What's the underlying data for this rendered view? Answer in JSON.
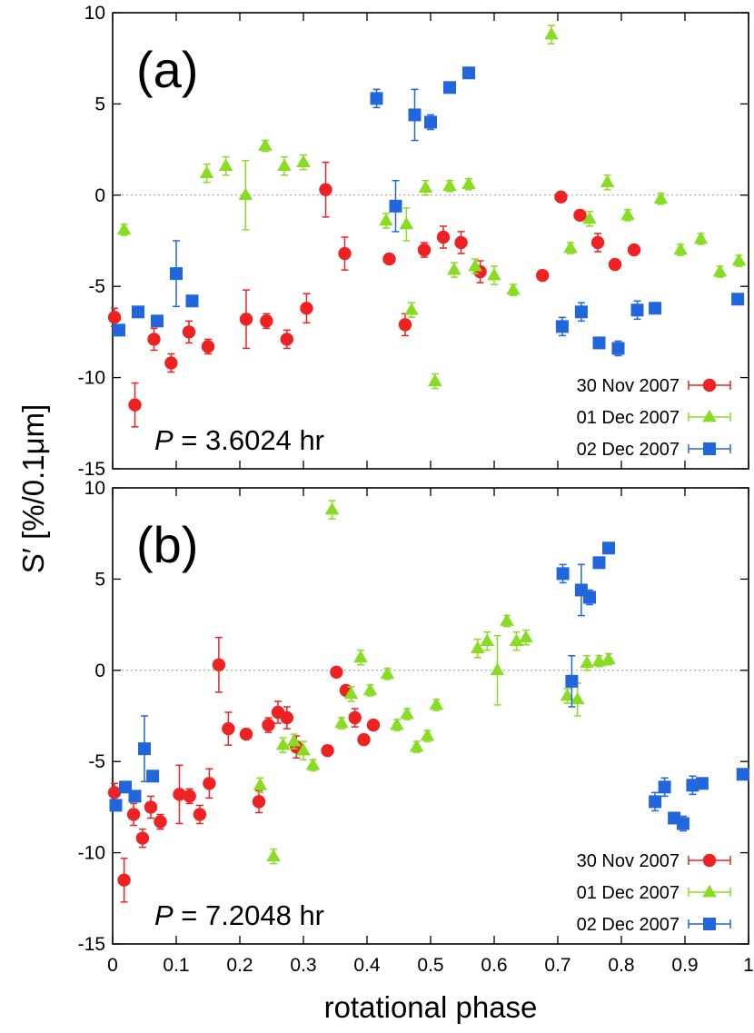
{
  "chart_data": {
    "type": "scatter",
    "ylabel": "S′ [%/0.1μm]",
    "xlabel": "rotational phase",
    "xlim": [
      0,
      1
    ],
    "ylim": [
      -15,
      10
    ],
    "x_ticks": [
      0,
      0.1,
      0.2,
      0.3,
      0.4,
      0.5,
      0.6,
      0.7,
      0.8,
      0.9,
      1
    ],
    "x_tick_labels": [
      "0",
      "0.1",
      "0.2",
      "0.3",
      "0.4",
      "0.5",
      "0.6",
      "0.7",
      "0.8",
      "0.9",
      "1"
    ],
    "y_ticks": [
      10,
      5,
      0,
      -5,
      -10,
      -15
    ],
    "y_tick_labels": [
      "10",
      "5",
      "0",
      "-5",
      "-10",
      "-15"
    ],
    "zero_line": true,
    "grid": false,
    "legend_placement": "bottom-right",
    "colors": {
      "30 Nov 2007": "#ee2222",
      "01 Dec 2007": "#88dd22",
      "02 Dec 2007": "#2266dd"
    },
    "panels": [
      {
        "label": "(a)",
        "period_var": "P",
        "period_text": " = 3.6024 hr",
        "series": [
          {
            "name": "30 Nov 2007",
            "marker": "circle",
            "points": [
              {
                "x": 0.003,
                "y": -6.7,
                "e": 0.5
              },
              {
                "x": 0.035,
                "y": -11.5,
                "e": 1.2
              },
              {
                "x": 0.065,
                "y": -7.9,
                "e": 0.6
              },
              {
                "x": 0.092,
                "y": -9.2,
                "e": 0.5
              },
              {
                "x": 0.12,
                "y": -7.5,
                "e": 0.6
              },
              {
                "x": 0.15,
                "y": -8.3,
                "e": 0.4
              },
              {
                "x": 0.21,
                "y": -6.8,
                "e": 1.6
              },
              {
                "x": 0.242,
                "y": -6.9,
                "e": 0.4
              },
              {
                "x": 0.274,
                "y": -7.9,
                "e": 0.5
              },
              {
                "x": 0.305,
                "y": -6.2,
                "e": 0.8
              },
              {
                "x": 0.335,
                "y": 0.3,
                "e": 1.5
              },
              {
                "x": 0.365,
                "y": -3.2,
                "e": 0.9
              },
              {
                "x": 0.435,
                "y": -3.5,
                "e": 0.2
              },
              {
                "x": 0.46,
                "y": -7.1,
                "e": 0.6
              },
              {
                "x": 0.49,
                "y": -3.0,
                "e": 0.4
              },
              {
                "x": 0.52,
                "y": -2.3,
                "e": 0.6
              },
              {
                "x": 0.548,
                "y": -2.6,
                "e": 0.6
              },
              {
                "x": 0.578,
                "y": -4.2,
                "e": 0.6
              },
              {
                "x": 0.676,
                "y": -4.4,
                "e": 0.2
              },
              {
                "x": 0.705,
                "y": -0.1,
                "e": 0.2
              },
              {
                "x": 0.735,
                "y": -1.1,
                "e": 0.2
              },
              {
                "x": 0.763,
                "y": -2.6,
                "e": 0.5
              },
              {
                "x": 0.79,
                "y": -3.8,
                "e": 0.2
              },
              {
                "x": 0.82,
                "y": -3.0,
                "e": 0.2
              }
            ]
          },
          {
            "name": "01 Dec 2007",
            "marker": "triangle",
            "points": [
              {
                "x": 0.018,
                "y": -1.9,
                "e": 0.3
              },
              {
                "x": 0.148,
                "y": 1.2,
                "e": 0.5
              },
              {
                "x": 0.178,
                "y": 1.6,
                "e": 0.5
              },
              {
                "x": 0.209,
                "y": 0.0,
                "e": 1.9
              },
              {
                "x": 0.24,
                "y": 2.7,
                "e": 0.3
              },
              {
                "x": 0.27,
                "y": 1.6,
                "e": 0.5
              },
              {
                "x": 0.3,
                "y": 1.8,
                "e": 0.4
              },
              {
                "x": 0.43,
                "y": -1.4,
                "e": 0.4
              },
              {
                "x": 0.462,
                "y": -1.6,
                "e": 0.9
              },
              {
                "x": 0.47,
                "y": -6.3,
                "e": 0.4
              },
              {
                "x": 0.492,
                "y": 0.4,
                "e": 0.4
              },
              {
                "x": 0.507,
                "y": -10.2,
                "e": 0.4
              },
              {
                "x": 0.53,
                "y": 0.5,
                "e": 0.3
              },
              {
                "x": 0.537,
                "y": -4.1,
                "e": 0.4
              },
              {
                "x": 0.56,
                "y": 0.6,
                "e": 0.3
              },
              {
                "x": 0.57,
                "y": -3.9,
                "e": 0.4
              },
              {
                "x": 0.6,
                "y": -4.4,
                "e": 0.5
              },
              {
                "x": 0.63,
                "y": -5.2,
                "e": 0.3
              },
              {
                "x": 0.69,
                "y": 8.8,
                "e": 0.5
              },
              {
                "x": 0.72,
                "y": -2.9,
                "e": 0.3
              },
              {
                "x": 0.75,
                "y": -1.3,
                "e": 0.4
              },
              {
                "x": 0.778,
                "y": 0.7,
                "e": 0.4
              },
              {
                "x": 0.81,
                "y": -1.1,
                "e": 0.3
              },
              {
                "x": 0.862,
                "y": -0.2,
                "e": 0.3
              },
              {
                "x": 0.893,
                "y": -3.0,
                "e": 0.3
              },
              {
                "x": 0.925,
                "y": -2.4,
                "e": 0.3
              },
              {
                "x": 0.955,
                "y": -4.2,
                "e": 0.3
              },
              {
                "x": 0.985,
                "y": -3.6,
                "e": 0.3
              }
            ]
          },
          {
            "name": "02 Dec 2007",
            "marker": "square",
            "points": [
              {
                "x": 0.01,
                "y": -7.4,
                "e": 0.2
              },
              {
                "x": 0.04,
                "y": -6.4,
                "e": 0.2
              },
              {
                "x": 0.07,
                "y": -6.9,
                "e": 0.2
              },
              {
                "x": 0.1,
                "y": -4.3,
                "e": 1.8
              },
              {
                "x": 0.125,
                "y": -5.8,
                "e": 0.3
              },
              {
                "x": 0.415,
                "y": 5.3,
                "e": 0.5
              },
              {
                "x": 0.445,
                "y": -0.6,
                "e": 1.4
              },
              {
                "x": 0.475,
                "y": 4.4,
                "e": 1.4
              },
              {
                "x": 0.5,
                "y": 4.0,
                "e": 0.4
              },
              {
                "x": 0.53,
                "y": 5.9,
                "e": 0.2
              },
              {
                "x": 0.56,
                "y": 6.7,
                "e": 0.2
              },
              {
                "x": 0.707,
                "y": -7.2,
                "e": 0.5
              },
              {
                "x": 0.737,
                "y": -6.4,
                "e": 0.5
              },
              {
                "x": 0.765,
                "y": -8.1,
                "e": 0.2
              },
              {
                "x": 0.795,
                "y": -8.4,
                "e": 0.4
              },
              {
                "x": 0.825,
                "y": -6.3,
                "e": 0.5
              },
              {
                "x": 0.853,
                "y": -6.2,
                "e": 0.2
              },
              {
                "x": 0.983,
                "y": -5.7,
                "e": 0.2
              }
            ]
          }
        ]
      },
      {
        "label": "(b)",
        "period_var": "P",
        "period_text": " = 7.2048 hr",
        "series": [
          {
            "name": "30 Nov 2007",
            "marker": "circle",
            "points": [
              {
                "x": 0.003,
                "y": -6.7,
                "e": 0.5
              },
              {
                "x": 0.018,
                "y": -11.5,
                "e": 1.2
              },
              {
                "x": 0.033,
                "y": -7.9,
                "e": 0.6
              },
              {
                "x": 0.047,
                "y": -9.2,
                "e": 0.5
              },
              {
                "x": 0.06,
                "y": -7.5,
                "e": 0.6
              },
              {
                "x": 0.075,
                "y": -8.3,
                "e": 0.4
              },
              {
                "x": 0.105,
                "y": -6.8,
                "e": 1.6
              },
              {
                "x": 0.121,
                "y": -6.9,
                "e": 0.4
              },
              {
                "x": 0.137,
                "y": -7.9,
                "e": 0.5
              },
              {
                "x": 0.152,
                "y": -6.2,
                "e": 0.8
              },
              {
                "x": 0.167,
                "y": 0.3,
                "e": 1.5
              },
              {
                "x": 0.182,
                "y": -3.2,
                "e": 0.9
              },
              {
                "x": 0.21,
                "y": -3.5,
                "e": 0.2
              },
              {
                "x": 0.23,
                "y": -7.2,
                "e": 0.6
              },
              {
                "x": 0.245,
                "y": -3.0,
                "e": 0.4
              },
              {
                "x": 0.26,
                "y": -2.3,
                "e": 0.6
              },
              {
                "x": 0.274,
                "y": -2.6,
                "e": 0.6
              },
              {
                "x": 0.289,
                "y": -4.2,
                "e": 0.6
              },
              {
                "x": 0.338,
                "y": -4.4,
                "e": 0.2
              },
              {
                "x": 0.352,
                "y": -0.1,
                "e": 0.2
              },
              {
                "x": 0.367,
                "y": -1.1,
                "e": 0.2
              },
              {
                "x": 0.381,
                "y": -2.6,
                "e": 0.5
              },
              {
                "x": 0.395,
                "y": -3.8,
                "e": 0.2
              },
              {
                "x": 0.41,
                "y": -3.0,
                "e": 0.2
              }
            ]
          },
          {
            "name": "01 Dec 2007",
            "marker": "triangle",
            "points": [
              {
                "x": 0.232,
                "y": -6.3,
                "e": 0.4
              },
              {
                "x": 0.253,
                "y": -10.2,
                "e": 0.4
              },
              {
                "x": 0.268,
                "y": -4.1,
                "e": 0.4
              },
              {
                "x": 0.285,
                "y": -3.9,
                "e": 0.4
              },
              {
                "x": 0.3,
                "y": -4.4,
                "e": 0.5
              },
              {
                "x": 0.315,
                "y": -5.2,
                "e": 0.3
              },
              {
                "x": 0.345,
                "y": 8.8,
                "e": 0.5
              },
              {
                "x": 0.36,
                "y": -2.9,
                "e": 0.3
              },
              {
                "x": 0.375,
                "y": -1.3,
                "e": 0.4
              },
              {
                "x": 0.39,
                "y": 0.7,
                "e": 0.4
              },
              {
                "x": 0.405,
                "y": -1.1,
                "e": 0.3
              },
              {
                "x": 0.432,
                "y": -0.2,
                "e": 0.3
              },
              {
                "x": 0.447,
                "y": -3.0,
                "e": 0.3
              },
              {
                "x": 0.478,
                "y": -4.2,
                "e": 0.3
              },
              {
                "x": 0.463,
                "y": -2.4,
                "e": 0.3
              },
              {
                "x": 0.495,
                "y": -3.6,
                "e": 0.3
              },
              {
                "x": 0.509,
                "y": -1.9,
                "e": 0.3
              },
              {
                "x": 0.574,
                "y": 1.2,
                "e": 0.5
              },
              {
                "x": 0.589,
                "y": 1.6,
                "e": 0.5
              },
              {
                "x": 0.605,
                "y": 0.0,
                "e": 1.9
              },
              {
                "x": 0.62,
                "y": 2.7,
                "e": 0.3
              },
              {
                "x": 0.635,
                "y": 1.6,
                "e": 0.5
              },
              {
                "x": 0.65,
                "y": 1.8,
                "e": 0.4
              },
              {
                "x": 0.715,
                "y": -1.4,
                "e": 0.4
              },
              {
                "x": 0.731,
                "y": -1.6,
                "e": 0.9
              },
              {
                "x": 0.746,
                "y": 0.4,
                "e": 0.4
              },
              {
                "x": 0.765,
                "y": 0.5,
                "e": 0.3
              },
              {
                "x": 0.78,
                "y": 0.6,
                "e": 0.3
              }
            ]
          },
          {
            "name": "02 Dec 2007",
            "marker": "square",
            "points": [
              {
                "x": 0.005,
                "y": -7.4,
                "e": 0.2
              },
              {
                "x": 0.02,
                "y": -6.4,
                "e": 0.2
              },
              {
                "x": 0.035,
                "y": -6.9,
                "e": 0.2
              },
              {
                "x": 0.05,
                "y": -4.3,
                "e": 1.8
              },
              {
                "x": 0.063,
                "y": -5.8,
                "e": 0.3
              },
              {
                "x": 0.708,
                "y": 5.3,
                "e": 0.5
              },
              {
                "x": 0.722,
                "y": -0.6,
                "e": 1.4
              },
              {
                "x": 0.737,
                "y": 4.4,
                "e": 1.4
              },
              {
                "x": 0.75,
                "y": 4.0,
                "e": 0.4
              },
              {
                "x": 0.765,
                "y": 5.9,
                "e": 0.2
              },
              {
                "x": 0.78,
                "y": 6.7,
                "e": 0.2
              },
              {
                "x": 0.853,
                "y": -7.2,
                "e": 0.5
              },
              {
                "x": 0.868,
                "y": -6.4,
                "e": 0.5
              },
              {
                "x": 0.883,
                "y": -8.1,
                "e": 0.2
              },
              {
                "x": 0.897,
                "y": -8.4,
                "e": 0.4
              },
              {
                "x": 0.912,
                "y": -6.3,
                "e": 0.5
              },
              {
                "x": 0.927,
                "y": -6.2,
                "e": 0.2
              },
              {
                "x": 0.991,
                "y": -5.7,
                "e": 0.2
              }
            ]
          }
        ]
      }
    ]
  }
}
